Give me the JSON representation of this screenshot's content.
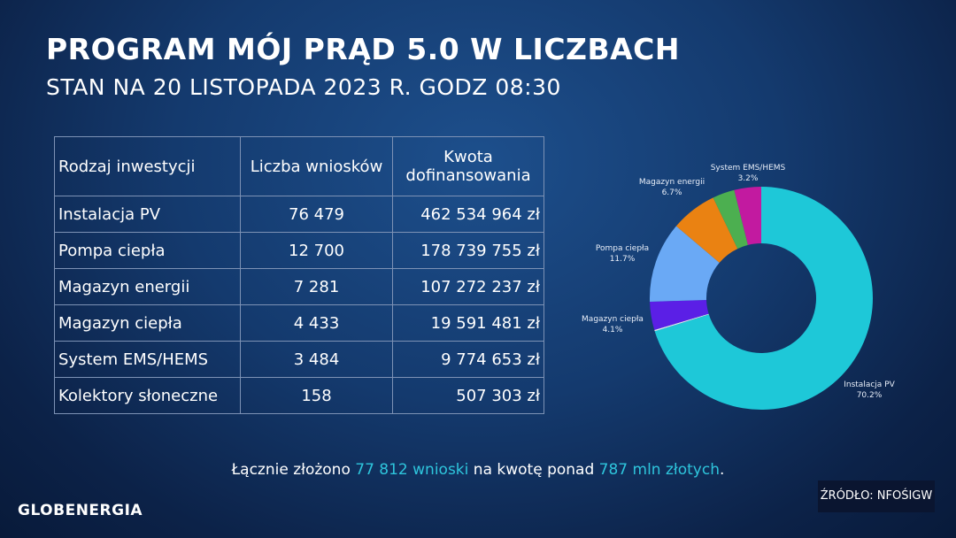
{
  "header": {
    "title": "PROGRAM MÓJ PRĄD 5.0 W LICZBACH",
    "subtitle": "STAN NA 20 LISTOPADA 2023 R. GODZ 08:30"
  },
  "table": {
    "headers": [
      "Rodzaj inwestycji",
      "Liczba wniosków",
      "Kwota dofinansowania"
    ],
    "rows": [
      [
        "Instalacja PV",
        "76 479",
        "462 534 964 zł"
      ],
      [
        "Pompa ciepła",
        "12 700",
        "178 739 755 zł"
      ],
      [
        "Magazyn energii",
        "7 281",
        "107 272 237 zł"
      ],
      [
        "Magazyn ciepła",
        "4 433",
        "19 591 481 zł"
      ],
      [
        "System EMS/HEMS",
        "3 484",
        "9 774 653 zł"
      ],
      [
        "Kolektory słoneczne",
        "158",
        "507 303 zł"
      ]
    ]
  },
  "chart_data": {
    "type": "pie",
    "donut": true,
    "slices": [
      {
        "label": "Instalacja PV",
        "value": 70.2,
        "pct": "70.2%",
        "color": "#1ec8d8"
      },
      {
        "label": "Kolektory słoneczne",
        "value": 0.2,
        "pct": "",
        "color": "#dfe8f0"
      },
      {
        "label": "Magazyn ciepła",
        "value": 4.1,
        "pct": "4.1%",
        "color": "#5b1fe6"
      },
      {
        "label": "Pompa ciepła",
        "value": 11.7,
        "pct": "11.7%",
        "color": "#6aa9f5"
      },
      {
        "label": "Magazyn energii",
        "value": 6.7,
        "pct": "6.7%",
        "color": "#ea8212"
      },
      {
        "label": "System EMS/HEMS",
        "value": 3.2,
        "pct": "3.2%",
        "color": "#4caf50"
      }
    ],
    "extra_slice_color": "#c21aa0"
  },
  "summary": {
    "pre": "Łącznie złożono ",
    "count": "77 812 wnioski",
    "mid": " na kwotę ponad ",
    "amount": "787 mln złotych",
    "post": "."
  },
  "footer": {
    "logo": "GLOBENERGIA",
    "source": "ŹRÓDŁO: NFOŚIGW"
  }
}
